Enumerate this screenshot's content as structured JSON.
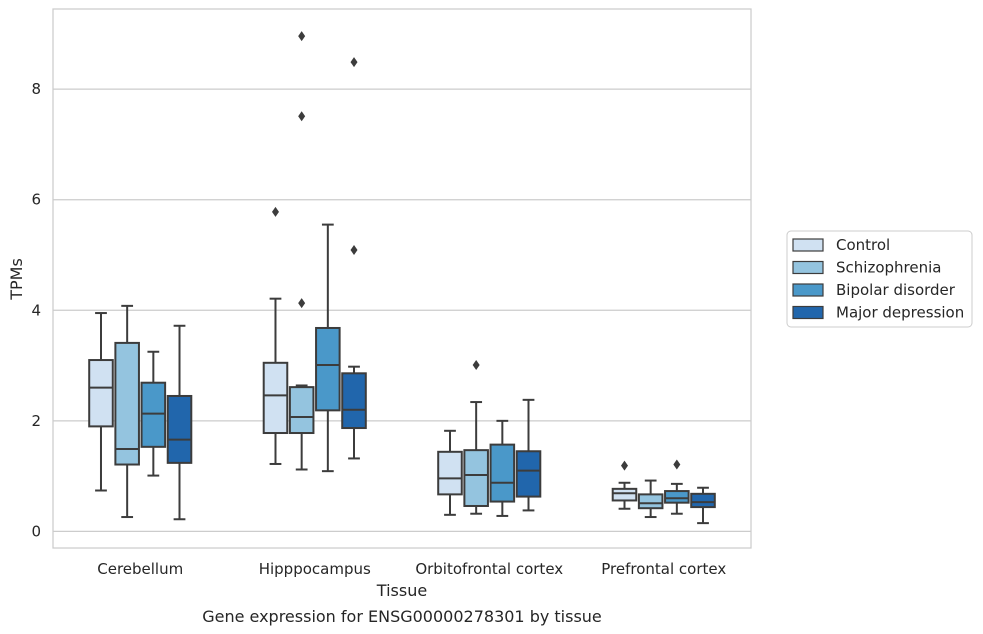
{
  "chart_data": {
    "type": "box",
    "title": "Gene expression for ENSG00000278301 by tissue",
    "xlabel": "Tissue",
    "ylabel": "TPMs",
    "ylim": [
      -0.3,
      9.45
    ],
    "yticks": [
      0,
      2,
      4,
      6,
      8
    ],
    "grid": "horizontal",
    "legend_position": "right",
    "categories": [
      "Cerebellum",
      "Hipppocampus",
      "Orbitofrontal cortex",
      "Prefrontal cortex"
    ],
    "series": [
      {
        "name": "Control",
        "color": "#d0e1f2",
        "boxes": [
          {
            "whisker_low": 0.74,
            "q1": 1.9,
            "median": 2.6,
            "q3": 3.1,
            "whisker_high": 3.95,
            "outliers": []
          },
          {
            "whisker_low": 1.22,
            "q1": 1.78,
            "median": 2.46,
            "q3": 3.05,
            "whisker_high": 4.21,
            "outliers": [
              5.78
            ]
          },
          {
            "whisker_low": 0.3,
            "q1": 0.67,
            "median": 0.96,
            "q3": 1.44,
            "whisker_high": 1.82,
            "outliers": []
          },
          {
            "whisker_low": 0.41,
            "q1": 0.56,
            "median": 0.69,
            "q3": 0.77,
            "whisker_high": 0.88,
            "outliers": [
              1.19
            ]
          }
        ]
      },
      {
        "name": "Schizophrenia",
        "color": "#94c4df",
        "boxes": [
          {
            "whisker_low": 0.26,
            "q1": 1.21,
            "median": 1.49,
            "q3": 3.41,
            "whisker_high": 4.08,
            "outliers": []
          },
          {
            "whisker_low": 1.12,
            "q1": 1.78,
            "median": 2.07,
            "q3": 2.61,
            "whisker_high": 2.64,
            "outliers": [
              4.13,
              7.51,
              8.96
            ]
          },
          {
            "whisker_low": 0.32,
            "q1": 0.46,
            "median": 1.02,
            "q3": 1.47,
            "whisker_high": 2.34,
            "outliers": [
              3.01
            ]
          },
          {
            "whisker_low": 0.26,
            "q1": 0.42,
            "median": 0.51,
            "q3": 0.67,
            "whisker_high": 0.92,
            "outliers": []
          }
        ]
      },
      {
        "name": "Bipolar disorder",
        "color": "#4a98c9",
        "boxes": [
          {
            "whisker_low": 1.01,
            "q1": 1.53,
            "median": 2.13,
            "q3": 2.69,
            "whisker_high": 3.25,
            "outliers": []
          },
          {
            "whisker_low": 1.09,
            "q1": 2.19,
            "median": 3.01,
            "q3": 3.68,
            "whisker_high": 5.55,
            "outliers": []
          },
          {
            "whisker_low": 0.28,
            "q1": 0.54,
            "median": 0.88,
            "q3": 1.57,
            "whisker_high": 2.0,
            "outliers": []
          },
          {
            "whisker_low": 0.32,
            "q1": 0.52,
            "median": 0.6,
            "q3": 0.73,
            "whisker_high": 0.86,
            "outliers": [
              1.21
            ]
          }
        ]
      },
      {
        "name": "Major depression",
        "color": "#2166ac",
        "boxes": [
          {
            "whisker_low": 0.22,
            "q1": 1.24,
            "median": 1.66,
            "q3": 2.45,
            "whisker_high": 3.72,
            "outliers": []
          },
          {
            "whisker_low": 1.32,
            "q1": 1.87,
            "median": 2.2,
            "q3": 2.86,
            "whisker_high": 2.98,
            "outliers": [
              5.09,
              8.49
            ]
          },
          {
            "whisker_low": 0.38,
            "q1": 0.63,
            "median": 1.1,
            "q3": 1.45,
            "whisker_high": 2.38,
            "outliers": []
          },
          {
            "whisker_low": 0.15,
            "q1": 0.44,
            "median": 0.53,
            "q3": 0.68,
            "whisker_high": 0.79,
            "outliers": []
          }
        ]
      }
    ]
  }
}
